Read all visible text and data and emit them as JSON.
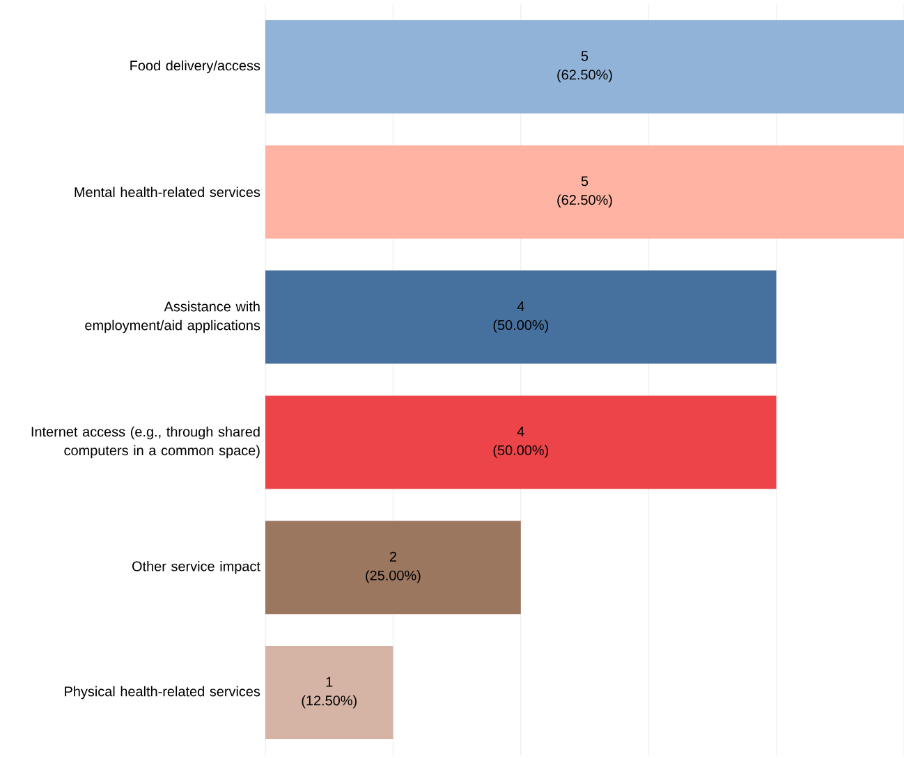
{
  "chart_data": {
    "type": "bar",
    "orientation": "horizontal",
    "categories": [
      "Food delivery/access",
      "Mental health-related services",
      "Assistance with employment/aid applications",
      "Internet access (e.g., through shared computers in a common space)",
      "Other service impact",
      "Physical health-related services"
    ],
    "values": [
      5,
      5,
      4,
      4,
      2,
      1
    ],
    "colors": [
      "#92b3d8",
      "#ffb3a3",
      "#46709e",
      "#ec4449",
      "#9c7760",
      "#d5b4a5"
    ],
    "value_labels": [
      "5 (62.50%)",
      "5 (62.50%)",
      "4 (50.00%)",
      "4 (50.00%)",
      "2 (25.00%)",
      "1 (12.50%)"
    ],
    "xlim": [
      0,
      5
    ],
    "xticks": [
      {
        "value": 0,
        "label": null
      },
      {
        "value": 1,
        "label": null
      },
      {
        "value": 2,
        "label": null
      },
      {
        "value": 3,
        "label": null
      },
      {
        "value": 4,
        "label": null
      },
      {
        "value": 5,
        "label": null
      }
    ],
    "grid": "x"
  }
}
